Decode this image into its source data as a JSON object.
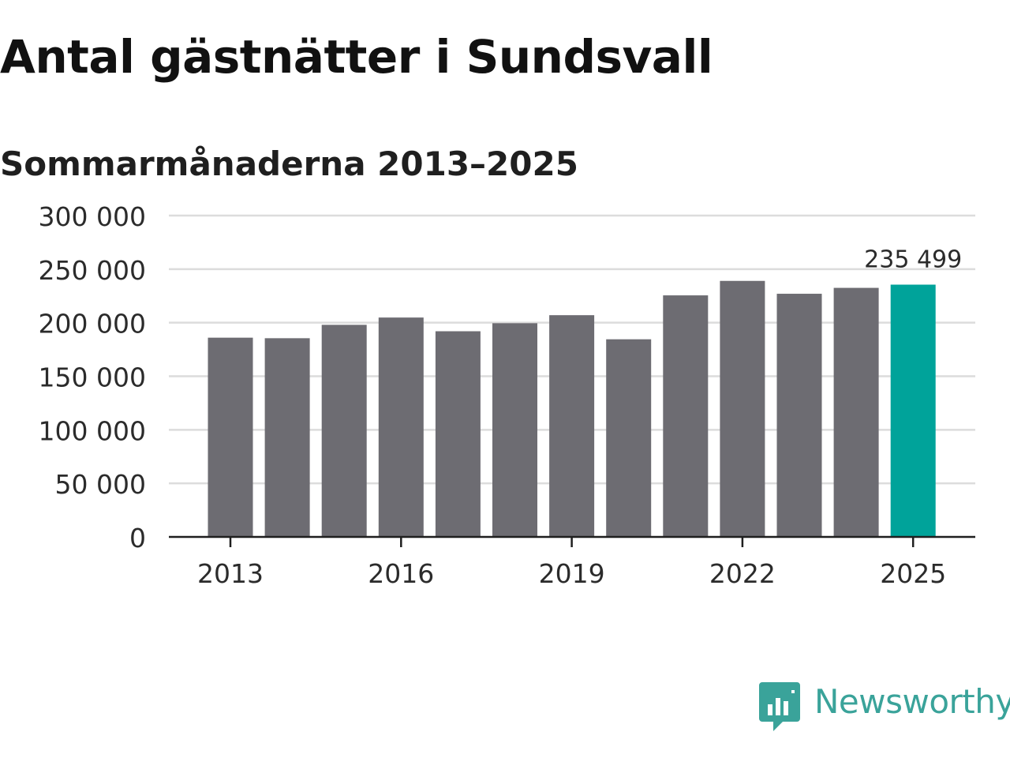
{
  "chart_data": {
    "type": "bar",
    "title": "Antal gästnätter i Sundsvall",
    "subtitle": "Sommarmånaderna 2013–2025",
    "xlabel": "",
    "ylabel": "",
    "categories": [
      "2013",
      "2014",
      "2015",
      "2016",
      "2017",
      "2018",
      "2019",
      "2020",
      "2021",
      "2022",
      "2023",
      "2024",
      "2025"
    ],
    "values": [
      186000,
      185500,
      198000,
      204800,
      192000,
      199500,
      207000,
      184500,
      225500,
      239000,
      227000,
      232500,
      235499
    ],
    "x_tick_labels": [
      "2013",
      "2016",
      "2019",
      "2022",
      "2025"
    ],
    "y_ticks": [
      0,
      50000,
      100000,
      150000,
      200000,
      250000,
      300000
    ],
    "y_tick_labels": [
      "0",
      "50 000",
      "100 000",
      "150 000",
      "200 000",
      "250 000",
      "300 000"
    ],
    "ylim": [
      0,
      300000
    ],
    "grid": true,
    "highlight_index": 12,
    "data_label": "235 499",
    "colors": {
      "bar": "#6d6c72",
      "highlight": "#00a39a",
      "grid": "#dcdcdc",
      "axis": "#1f1f1f"
    }
  },
  "brand": {
    "name": "Newsworthy",
    "color": "#3aa39a",
    "icon": "newsworthy-logo-icon"
  }
}
